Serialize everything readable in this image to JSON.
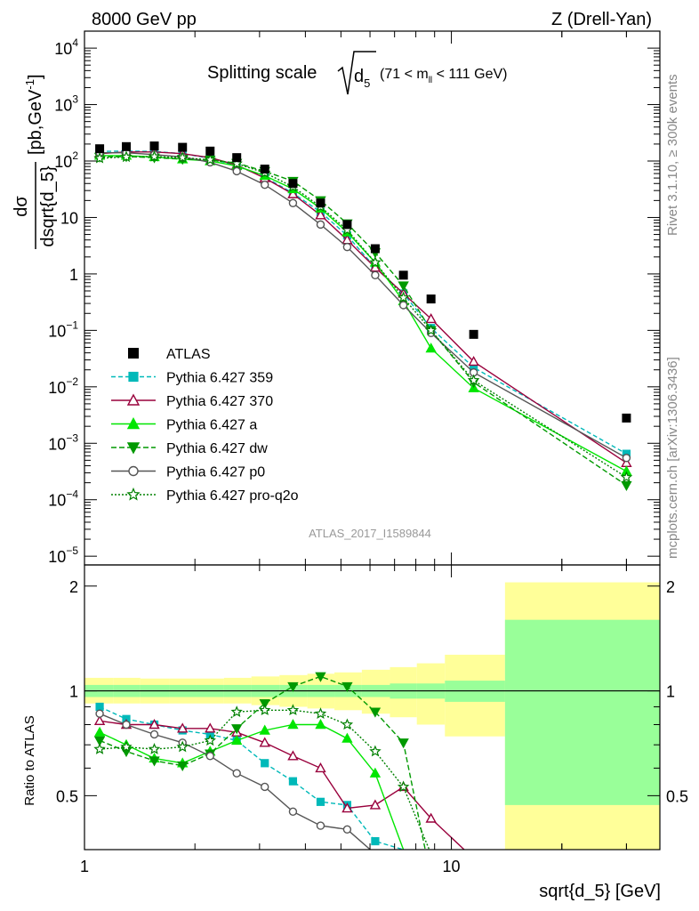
{
  "header": {
    "left": "8000 GeV pp",
    "right": "Z (Drell-Yan)"
  },
  "side_labels": {
    "rivet": "Rivet 3.1.10, ≥ 300k events",
    "mcplots": "mcplots.cern.ch [arXiv:1306.3436]"
  },
  "analysis_id": "ATLAS_2017_I1589844",
  "title": {
    "prefix": "Splitting scale",
    "var": "d",
    "var_sub": "5",
    "cut_pre": "(71 < m",
    "cut_sub": "ll",
    "cut_post": " < 111 GeV)"
  },
  "upper_ylabel": {
    "num": "dσ",
    "den": "dsqrt{d_5}",
    "units": "[pb,GeV",
    "units_sup": "-1",
    "units_post": "]"
  },
  "lower_ylabel": "Ratio to ATLAS",
  "xlabel": "sqrt{d_5} [GeV]",
  "chart_data": [
    {
      "type": "scatter",
      "panel": "main",
      "x_scale": "log",
      "y_scale": "log",
      "xlim": [
        1,
        37
      ],
      "ylim": [
        7e-06,
        20000
      ],
      "xlabel": "sqrt{d_5} [GeV]",
      "ylabel": "dσ/dsqrt{d_5} [pb,GeV-1]",
      "x_ticks": [
        {
          "value": 1,
          "label": "1"
        },
        {
          "value": 10,
          "label": "10"
        }
      ],
      "y_ticks": [
        {
          "value": 1e-05,
          "base": "10",
          "exp": "−5"
        },
        {
          "value": 0.0001,
          "base": "10",
          "exp": "−4"
        },
        {
          "value": 0.001,
          "base": "10",
          "exp": "−3"
        },
        {
          "value": 0.01,
          "base": "10",
          "exp": "−2"
        },
        {
          "value": 0.1,
          "base": "10",
          "exp": "−1"
        },
        {
          "value": 1,
          "base": "1",
          "exp": ""
        },
        {
          "value": 10,
          "base": "10",
          "exp": ""
        },
        {
          "value": 100,
          "base": "10",
          "exp": "2"
        },
        {
          "value": 1000,
          "base": "10",
          "exp": "3"
        },
        {
          "value": 10000,
          "base": "10",
          "exp": "4"
        }
      ],
      "data": {
        "name": "ATLAS",
        "color": "#000000",
        "x": [
          1.1,
          1.3,
          1.55,
          1.85,
          2.2,
          2.6,
          3.1,
          3.7,
          4.4,
          5.2,
          6.2,
          7.4,
          8.8,
          11.5,
          30
        ],
        "y": [
          165,
          180,
          185,
          175,
          150,
          115,
          72,
          40,
          18,
          7.5,
          2.8,
          0.95,
          0.36,
          0.085,
          0.0028
        ]
      },
      "series": [
        {
          "name": "Pythia 6.427 359",
          "color": "#00b9b9",
          "dash": "5,3",
          "marker": "square",
          "hollow": false,
          "y": [
            148,
            150,
            148,
            135,
            112,
            82,
            52,
            27,
            12.5,
            4.8,
            1.3,
            0.45,
            0.11,
            0.022,
            0.00065
          ]
        },
        {
          "name": "Pythia 6.427 370",
          "color": "#99003c",
          "dash": "",
          "marker": "triangle",
          "hollow": true,
          "y": [
            135,
            145,
            145,
            135,
            115,
            85,
            50,
            26,
            11,
            4.0,
            1.3,
            0.45,
            0.16,
            0.028,
            0.00045
          ]
        },
        {
          "name": "Pythia 6.427 a",
          "color": "#00e600",
          "dash": "",
          "marker": "triangle",
          "hollow": false,
          "y": [
            125,
            125,
            118,
            108,
            100,
            82,
            55,
            32,
            14.5,
            5.5,
            1.6,
            0.33,
            0.048,
            0.0095,
            0.00032
          ]
        },
        {
          "name": "Pythia 6.427 dw",
          "color": "#009900",
          "dash": "6,3",
          "marker": "triangle-down",
          "hollow": false,
          "y": [
            118,
            120,
            115,
            108,
            105,
            92,
            66,
            44,
            20,
            7.8,
            2.4,
            0.62,
            0.1,
            0.012,
            0.00018
          ]
        },
        {
          "name": "Pythia 6.427 p0",
          "color": "#555555",
          "dash": "",
          "marker": "circle",
          "hollow": true,
          "y": [
            140,
            140,
            130,
            118,
            95,
            66,
            38,
            18,
            7.5,
            3.0,
            0.95,
            0.28,
            0.09,
            0.018,
            0.00055
          ]
        },
        {
          "name": "Pythia 6.427 pro-q2o",
          "color": "#008000",
          "dash": "2,2",
          "marker": "star",
          "hollow": true,
          "y": [
            112,
            118,
            120,
            115,
            105,
            90,
            62,
            35,
            15.5,
            6.0,
            1.6,
            0.38,
            0.1,
            0.013,
            0.00025
          ]
        }
      ]
    },
    {
      "type": "area",
      "panel": "ratio",
      "x_scale": "log",
      "xlim": [
        1,
        37
      ],
      "ylim": [
        0.35,
        2.3
      ],
      "ylabel": "Ratio to ATLAS",
      "y_ticks": [
        {
          "value": 0.5,
          "label": "0.5"
        },
        {
          "value": 1,
          "label": "1"
        },
        {
          "value": 2,
          "label": "2"
        }
      ],
      "band_edges": [
        1,
        1.2,
        1.42,
        1.7,
        2.02,
        2.4,
        2.85,
        3.4,
        4.05,
        4.8,
        5.7,
        6.8,
        8.05,
        9.6,
        14,
        37
      ],
      "stat_band": [
        [
          0.96,
          1.04
        ],
        [
          0.96,
          1.04
        ],
        [
          0.96,
          1.04
        ],
        [
          0.96,
          1.04
        ],
        [
          0.96,
          1.04
        ],
        [
          0.96,
          1.04
        ],
        [
          0.96,
          1.04
        ],
        [
          0.96,
          1.04
        ],
        [
          0.96,
          1.04
        ],
        [
          0.96,
          1.04
        ],
        [
          0.96,
          1.04
        ],
        [
          0.95,
          1.05
        ],
        [
          0.95,
          1.05
        ],
        [
          0.93,
          1.07
        ],
        [
          0.47,
          1.6
        ]
      ],
      "total_band": [
        [
          0.92,
          1.09
        ],
        [
          0.92,
          1.09
        ],
        [
          0.92,
          1.085
        ],
        [
          0.92,
          1.085
        ],
        [
          0.92,
          1.085
        ],
        [
          0.92,
          1.09
        ],
        [
          0.91,
          1.1
        ],
        [
          0.9,
          1.11
        ],
        [
          0.89,
          1.12
        ],
        [
          0.88,
          1.13
        ],
        [
          0.86,
          1.15
        ],
        [
          0.84,
          1.17
        ],
        [
          0.8,
          1.2
        ],
        [
          0.74,
          1.27
        ],
        [
          0.35,
          2.05
        ]
      ],
      "series": [
        {
          "name": "Pythia 6.427 359",
          "y": [
            0.9,
            0.83,
            0.8,
            0.77,
            0.75,
            0.72,
            0.62,
            0.55,
            0.48,
            0.47,
            0.37,
            0.35
          ]
        },
        {
          "name": "Pythia 6.427 370",
          "y": [
            0.82,
            0.8,
            0.8,
            0.78,
            0.78,
            0.76,
            0.71,
            0.65,
            0.6,
            0.46,
            0.47,
            0.53,
            0.43,
            0.33
          ]
        },
        {
          "name": "Pythia 6.427 a",
          "y": [
            0.76,
            0.7,
            0.64,
            0.62,
            0.67,
            0.72,
            0.77,
            0.8,
            0.8,
            0.73,
            0.58,
            0.35
          ]
        },
        {
          "name": "Pythia 6.427 dw",
          "y": [
            0.72,
            0.67,
            0.63,
            0.61,
            0.66,
            0.78,
            0.92,
            1.03,
            1.1,
            1.03,
            0.87,
            0.71,
            0.29
          ]
        },
        {
          "name": "Pythia 6.427 p0",
          "y": [
            0.86,
            0.8,
            0.75,
            0.71,
            0.65,
            0.58,
            0.53,
            0.45,
            0.41,
            0.4,
            0.34
          ]
        },
        {
          "name": "Pythia 6.427 pro-q2o",
          "y": [
            0.68,
            0.69,
            0.68,
            0.69,
            0.72,
            0.87,
            0.88,
            0.88,
            0.86,
            0.8,
            0.67,
            0.53,
            0.34
          ]
        }
      ]
    }
  ]
}
